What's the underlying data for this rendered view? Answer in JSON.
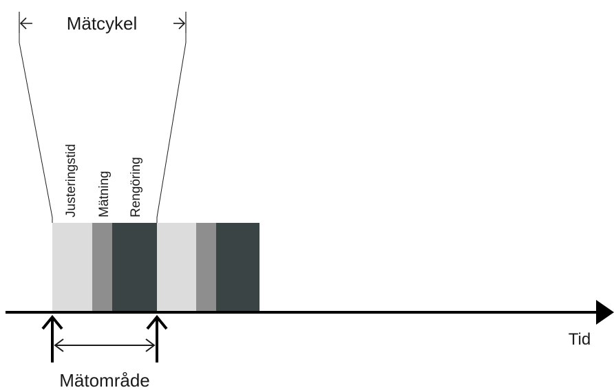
{
  "cycle": {
    "label": "Mätcykel"
  },
  "axis": {
    "label": "Tid"
  },
  "range": {
    "label": "Mätområde"
  },
  "phases": [
    {
      "label": "Justeringstid",
      "color": "#dcdcdc"
    },
    {
      "label": "Mätning",
      "color": "#8e8e8e"
    },
    {
      "label": "Rengöring",
      "color": "#3a4444"
    }
  ],
  "colors": {
    "line": "#1a1a1a",
    "axis": "#000000",
    "background": "#ffffff"
  }
}
